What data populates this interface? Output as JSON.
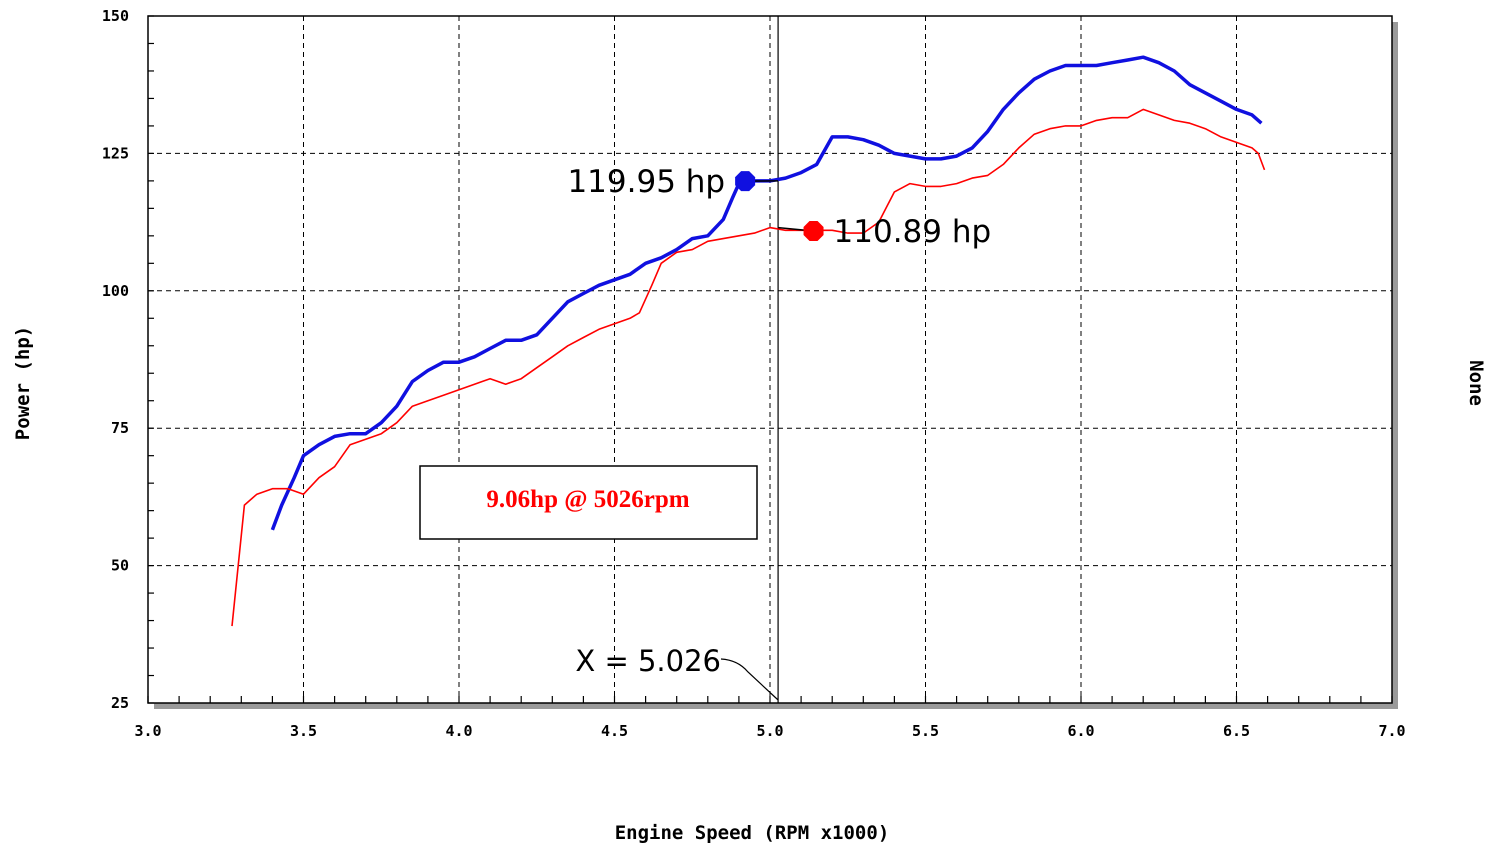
{
  "chart_data": {
    "type": "line",
    "xlabel": "Engine Speed (RPM x1000)",
    "ylabel": "Power (hp)",
    "right_label": "None",
    "xlim": [
      3.0,
      7.0
    ],
    "ylim": [
      25,
      150
    ],
    "x_ticks": [
      "3.0",
      "3.5",
      "4.0",
      "4.5",
      "5.0",
      "5.5",
      "6.0",
      "6.5",
      "7.0"
    ],
    "y_ticks": [
      "25",
      "50",
      "75",
      "100",
      "125",
      "150"
    ],
    "grid": true,
    "series": [
      {
        "color": "#1010e0",
        "points": [
          [
            3.4,
            56.5
          ],
          [
            3.43,
            61
          ],
          [
            3.47,
            66
          ],
          [
            3.5,
            70
          ],
          [
            3.55,
            72
          ],
          [
            3.6,
            73.5
          ],
          [
            3.65,
            74
          ],
          [
            3.7,
            74
          ],
          [
            3.75,
            76
          ],
          [
            3.8,
            79
          ],
          [
            3.85,
            83.5
          ],
          [
            3.9,
            85.5
          ],
          [
            3.95,
            87
          ],
          [
            4.0,
            87
          ],
          [
            4.05,
            88
          ],
          [
            4.1,
            89.5
          ],
          [
            4.15,
            91
          ],
          [
            4.2,
            91
          ],
          [
            4.25,
            92
          ],
          [
            4.3,
            95
          ],
          [
            4.35,
            98
          ],
          [
            4.4,
            99.5
          ],
          [
            4.45,
            101
          ],
          [
            4.5,
            102
          ],
          [
            4.55,
            103
          ],
          [
            4.6,
            105
          ],
          [
            4.65,
            106
          ],
          [
            4.7,
            107.5
          ],
          [
            4.75,
            109.5
          ],
          [
            4.8,
            110
          ],
          [
            4.85,
            113
          ],
          [
            4.88,
            117
          ],
          [
            4.9,
            119.5
          ],
          [
            4.95,
            120
          ],
          [
            5.0,
            120
          ],
          [
            5.05,
            120.5
          ],
          [
            5.1,
            121.5
          ],
          [
            5.15,
            123
          ],
          [
            5.2,
            128
          ],
          [
            5.25,
            128
          ],
          [
            5.3,
            127.5
          ],
          [
            5.35,
            126.5
          ],
          [
            5.4,
            125
          ],
          [
            5.45,
            124.5
          ],
          [
            5.5,
            124
          ],
          [
            5.55,
            124
          ],
          [
            5.6,
            124.5
          ],
          [
            5.65,
            126
          ],
          [
            5.7,
            129
          ],
          [
            5.75,
            133
          ],
          [
            5.8,
            136
          ],
          [
            5.85,
            138.5
          ],
          [
            5.9,
            140
          ],
          [
            5.95,
            141
          ],
          [
            6.0,
            141
          ],
          [
            6.05,
            141
          ],
          [
            6.1,
            141.5
          ],
          [
            6.15,
            142
          ],
          [
            6.2,
            142.5
          ],
          [
            6.25,
            141.5
          ],
          [
            6.3,
            140
          ],
          [
            6.35,
            137.5
          ],
          [
            6.4,
            136
          ],
          [
            6.45,
            134.5
          ],
          [
            6.5,
            133
          ],
          [
            6.55,
            132
          ],
          [
            6.58,
            130.5
          ]
        ]
      },
      {
        "color": "#ff0000",
        "points": [
          [
            3.27,
            39
          ],
          [
            3.29,
            50
          ],
          [
            3.31,
            61
          ],
          [
            3.35,
            63
          ],
          [
            3.4,
            64
          ],
          [
            3.45,
            64
          ],
          [
            3.5,
            63
          ],
          [
            3.55,
            66
          ],
          [
            3.6,
            68
          ],
          [
            3.65,
            72
          ],
          [
            3.7,
            73
          ],
          [
            3.75,
            74
          ],
          [
            3.8,
            76
          ],
          [
            3.85,
            79
          ],
          [
            3.9,
            80
          ],
          [
            3.95,
            81
          ],
          [
            4.0,
            82
          ],
          [
            4.05,
            83
          ],
          [
            4.1,
            84
          ],
          [
            4.15,
            83
          ],
          [
            4.2,
            84
          ],
          [
            4.25,
            86
          ],
          [
            4.3,
            88
          ],
          [
            4.35,
            90
          ],
          [
            4.4,
            91.5
          ],
          [
            4.45,
            93
          ],
          [
            4.5,
            94
          ],
          [
            4.55,
            95
          ],
          [
            4.58,
            96
          ],
          [
            4.62,
            101
          ],
          [
            4.65,
            105
          ],
          [
            4.7,
            107
          ],
          [
            4.75,
            107.5
          ],
          [
            4.8,
            109
          ],
          [
            4.85,
            109.5
          ],
          [
            4.9,
            110
          ],
          [
            4.95,
            110.5
          ],
          [
            5.0,
            111.5
          ],
          [
            5.05,
            111
          ],
          [
            5.1,
            111
          ],
          [
            5.15,
            111
          ],
          [
            5.2,
            111
          ],
          [
            5.25,
            110.5
          ],
          [
            5.3,
            110.5
          ],
          [
            5.35,
            112.5
          ],
          [
            5.4,
            118
          ],
          [
            5.45,
            119.5
          ],
          [
            5.5,
            119
          ],
          [
            5.55,
            119
          ],
          [
            5.6,
            119.5
          ],
          [
            5.65,
            120.5
          ],
          [
            5.7,
            121
          ],
          [
            5.75,
            123
          ],
          [
            5.8,
            126
          ],
          [
            5.85,
            128.5
          ],
          [
            5.9,
            129.5
          ],
          [
            5.95,
            130
          ],
          [
            6.0,
            130
          ],
          [
            6.05,
            131
          ],
          [
            6.1,
            131.5
          ],
          [
            6.15,
            131.5
          ],
          [
            6.2,
            133
          ],
          [
            6.25,
            132
          ],
          [
            6.3,
            131
          ],
          [
            6.35,
            130.5
          ],
          [
            6.4,
            129.5
          ],
          [
            6.45,
            128
          ],
          [
            6.5,
            127
          ],
          [
            6.55,
            126
          ],
          [
            6.57,
            125
          ],
          [
            6.59,
            122
          ]
        ]
      }
    ],
    "markers": [
      {
        "x": 4.92,
        "y": 119.95,
        "color": "#1010e0",
        "label": "119.95 hp"
      },
      {
        "x": 5.14,
        "y": 110.89,
        "color": "#ff0000",
        "label": "110.89 hp"
      }
    ],
    "cursor": {
      "x": 5.026,
      "label": "X = 5.026"
    },
    "annotation": "9.06hp @ 5026rpm"
  }
}
